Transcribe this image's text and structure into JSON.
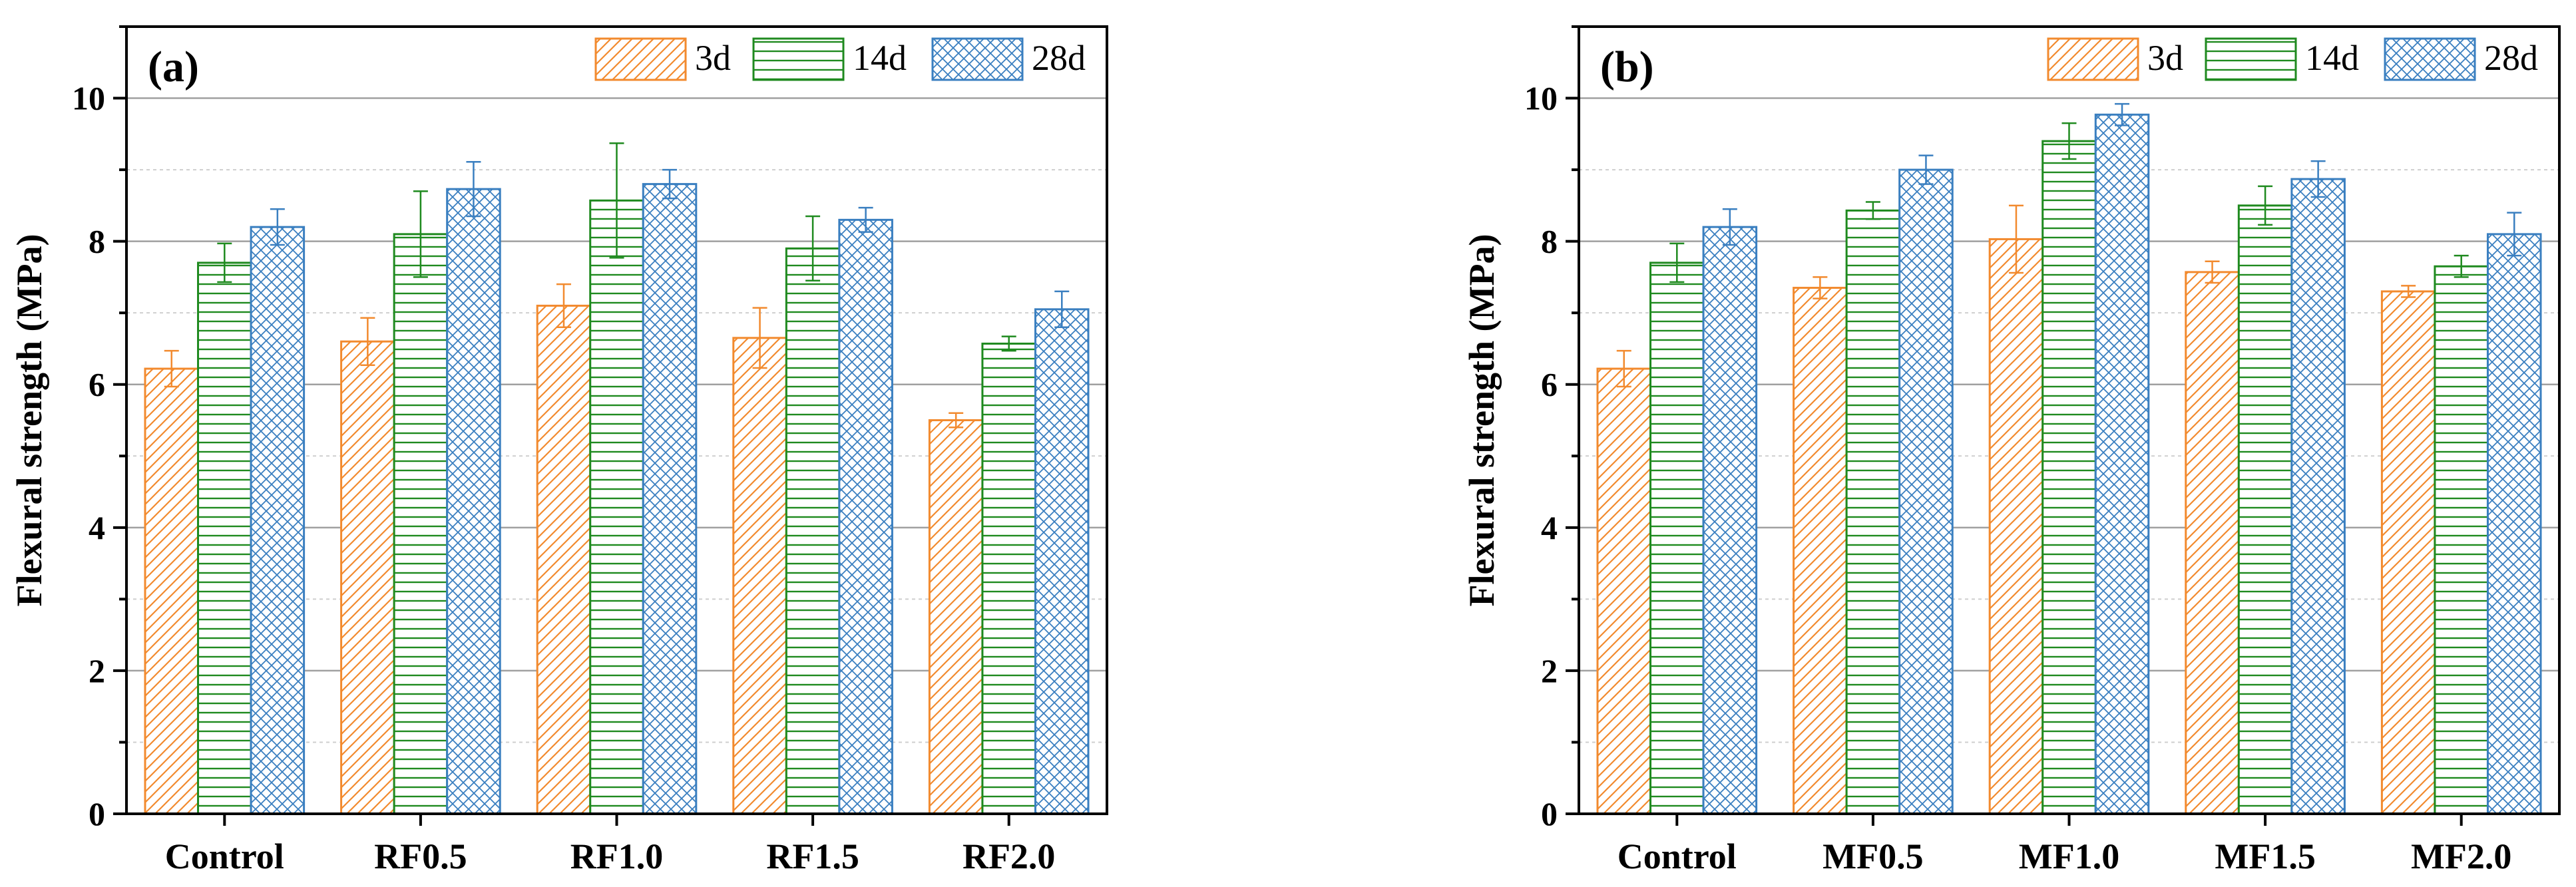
{
  "colors": {
    "3d": "#f28a2e",
    "14d": "#1f8a1f",
    "28d": "#3a7fc0",
    "axis": "#000000",
    "major_grid": "#a0a0a0",
    "minor_grid": "#cfcfcf"
  },
  "chart_data": [
    {
      "type": "bar",
      "panel_label": "(a)",
      "ylabel": "Flexural strength (MPa)",
      "xlabel": "",
      "ylim": [
        0,
        11
      ],
      "yticks": [
        0,
        2,
        4,
        6,
        8,
        10
      ],
      "ytick_labels": [
        "0",
        "2",
        "4",
        "6",
        "8",
        "10"
      ],
      "grid": true,
      "legend_position": "top-right",
      "categories": [
        "Control",
        "RF0.5",
        "RF1.0",
        "RF1.5",
        "RF2.0"
      ],
      "series": [
        {
          "name": "3d",
          "values": [
            6.22,
            6.6,
            7.1,
            6.65,
            5.5
          ],
          "errors": [
            0.25,
            0.33,
            0.3,
            0.42,
            0.1
          ]
        },
        {
          "name": "14d",
          "values": [
            7.7,
            8.1,
            8.57,
            7.9,
            6.57
          ],
          "errors": [
            0.27,
            0.6,
            0.8,
            0.45,
            0.1
          ]
        },
        {
          "name": "28d",
          "values": [
            8.2,
            8.73,
            8.8,
            8.3,
            7.05
          ],
          "errors": [
            0.25,
            0.38,
            0.2,
            0.17,
            0.25
          ]
        }
      ]
    },
    {
      "type": "bar",
      "panel_label": "(b)",
      "ylabel": "Flexural strength (MPa)",
      "xlabel": "",
      "ylim": [
        0,
        11
      ],
      "yticks": [
        0,
        2,
        4,
        6,
        8,
        10
      ],
      "ytick_labels": [
        "0",
        "2",
        "4",
        "6",
        "8",
        "10"
      ],
      "grid": true,
      "legend_position": "top-right",
      "categories": [
        "Control",
        "MF0.5",
        "MF1.0",
        "MF1.5",
        "MF2.0"
      ],
      "series": [
        {
          "name": "3d",
          "values": [
            6.22,
            7.35,
            8.03,
            7.57,
            7.3
          ],
          "errors": [
            0.25,
            0.15,
            0.47,
            0.15,
            0.08
          ]
        },
        {
          "name": "14d",
          "values": [
            7.7,
            8.43,
            9.4,
            8.5,
            7.65
          ],
          "errors": [
            0.27,
            0.12,
            0.25,
            0.27,
            0.15
          ]
        },
        {
          "name": "28d",
          "values": [
            8.2,
            9.0,
            9.77,
            8.87,
            8.1
          ],
          "errors": [
            0.25,
            0.2,
            0.15,
            0.25,
            0.3
          ]
        }
      ]
    }
  ]
}
